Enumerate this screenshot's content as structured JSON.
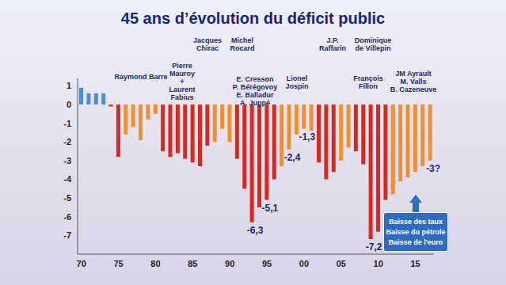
{
  "chart_data": {
    "type": "bar",
    "title": "45 ans d’évolution du déficit public",
    "categories": [
      "70",
      null,
      null,
      null,
      null,
      "75",
      null,
      null,
      null,
      null,
      "80",
      null,
      null,
      null,
      null,
      "85",
      null,
      null,
      null,
      null,
      "90",
      null,
      null,
      null,
      null,
      "95",
      null,
      null,
      null,
      null,
      "00",
      null,
      null,
      null,
      null,
      "05",
      null,
      null,
      null,
      null,
      "10",
      null,
      null,
      null,
      null,
      "15",
      null,
      null
    ],
    "values": [
      0.9,
      0.6,
      0.6,
      0.6,
      -0.1,
      -2.8,
      -1.6,
      -1.2,
      -1.9,
      -0.8,
      -0.5,
      -2.5,
      -2.8,
      -2.6,
      -2.9,
      -3.1,
      -3.3,
      -2.2,
      -2.0,
      -1.3,
      -2.0,
      -2.9,
      -4.5,
      -6.3,
      -5.5,
      -5.1,
      -4.0,
      -3.3,
      -2.4,
      -1.6,
      -1.3,
      -1.4,
      -3.1,
      -4.0,
      -3.6,
      -3.0,
      -2.3,
      -2.5,
      -3.2,
      -7.2,
      -6.8,
      -5.1,
      -4.8,
      -4.1,
      -3.9,
      -3.6,
      -3.3,
      -3.0
    ],
    "colors": [
      "#4a8fd6",
      "#4a8fd6",
      "#4a8fd6",
      "#4a8fd6",
      "#d9281e",
      "#d9281e",
      "#f0902e",
      "#f0902e",
      "#f0902e",
      "#f0902e",
      "#f0902e",
      "#d9281e",
      "#d9281e",
      "#d9281e",
      "#d9281e",
      "#d9281e",
      "#d9281e",
      "#d9281e",
      "#f0902e",
      "#f0902e",
      "#f0902e",
      "#d9281e",
      "#d9281e",
      "#d9281e",
      "#d9281e",
      "#d9281e",
      "#d9281e",
      "#f0902e",
      "#f0902e",
      "#f0902e",
      "#f0902e",
      "#f0902e",
      "#d9281e",
      "#d9281e",
      "#d9281e",
      "#f0902e",
      "#f0902e",
      "#d9281e",
      "#d9281e",
      "#d9281e",
      "#d9281e",
      "#d9281e",
      "#f0902e",
      "#f0902e",
      "#f0902e",
      "#f0902e",
      "#f0902e",
      "#f0902e"
    ],
    "data_labels": true,
    "value_labels": [
      null,
      null,
      null,
      null,
      null,
      null,
      null,
      null,
      null,
      null,
      null,
      null,
      null,
      null,
      null,
      null,
      null,
      null,
      null,
      null,
      null,
      null,
      null,
      "-6,3",
      null,
      "-5,1",
      null,
      null,
      "-2,4",
      null,
      "-1,3",
      null,
      null,
      null,
      null,
      null,
      null,
      null,
      null,
      "-7,2",
      null,
      null,
      null,
      null,
      null,
      null,
      null,
      "-3?"
    ],
    "ylim": [
      -8,
      1.4
    ],
    "yticks": [
      1,
      0,
      -1,
      -2,
      -3,
      -4,
      -5,
      -6,
      -7
    ],
    "grid": false,
    "annotations": [
      {
        "text": [
          "Raymond Barre"
        ]
      },
      {
        "text": [
          "Pierre",
          "Mauroy",
          "+",
          "Laurent",
          "Fabius"
        ]
      },
      {
        "text": [
          "Jacques",
          "Chirac"
        ]
      },
      {
        "text": [
          "Michel",
          "Rocard"
        ]
      },
      {
        "text": [
          "E. Cresson",
          "P. Bérégovoy",
          "E. Balladur",
          "A. Juppé"
        ]
      },
      {
        "text": [
          "Lionel",
          "Jospin"
        ]
      },
      {
        "text": [
          "J.P.",
          "Raffarin"
        ]
      },
      {
        "text": [
          "Dominique",
          "de Villepin"
        ]
      },
      {
        "text": [
          "François",
          "Fillon"
        ]
      },
      {
        "text": [
          "JM Ayrault",
          "M. Valls",
          "B. Cazeneuve"
        ]
      }
    ],
    "callout": {
      "text": [
        "Baisse des taux",
        "Baisse du pétrole",
        "Baisse de l'euro"
      ]
    }
  }
}
